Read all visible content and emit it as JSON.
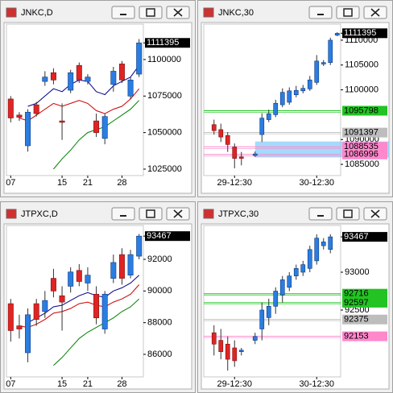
{
  "windows": [
    {
      "title": "JNKC,D",
      "last": 1111395,
      "ylim": [
        1020600,
        1124200
      ],
      "yticks": [
        1100000,
        1075000,
        1050000,
        1025000
      ],
      "categories": [
        "07",
        null,
        null,
        null,
        null,
        null,
        "15",
        null,
        null,
        "21",
        null,
        null,
        null,
        "28",
        null,
        null
      ],
      "candles": {
        "open": [
          1073000,
          1062000,
          1041000,
          1069000,
          1085000,
          1091000,
          1058000,
          1079000,
          1096000,
          1085000,
          1058000,
          1046000,
          1083000,
          1097000,
          1075000,
          1090000
        ],
        "high": [
          1075000,
          1064000,
          1066000,
          1071000,
          1092000,
          1094000,
          1070000,
          1093000,
          1098000,
          1090000,
          1063000,
          1063000,
          1095000,
          1099000,
          1088000,
          1114000
        ],
        "low": [
          1057000,
          1058000,
          1037000,
          1061000,
          1082000,
          1083000,
          1045000,
          1077000,
          1084000,
          1083000,
          1047000,
          1042000,
          1078000,
          1084000,
          1073000,
          1088000
        ],
        "close": [
          1060000,
          1060500,
          1064000,
          1063000,
          1088000,
          1086000,
          1057000,
          1091000,
          1086000,
          1088000,
          1050000,
          1061000,
          1092000,
          1086000,
          1086000,
          1111395
        ]
      },
      "averages": [
        {
          "color": "#00008b",
          "values": [
            null,
            null,
            1068000,
            1070000,
            1075000,
            1080000,
            1078000,
            1083000,
            1086000,
            1085000,
            1078000,
            1076000,
            1082000,
            1085000,
            1088000,
            1096000
          ]
        },
        {
          "color": "#cc0000",
          "values": [
            null,
            1060000,
            1058000,
            1062000,
            1066000,
            1070000,
            1068000,
            1070000,
            1072000,
            1070000,
            1065000,
            1063000,
            1066000,
            1068000,
            1073000,
            1080000
          ]
        },
        {
          "color": "#008000",
          "values": [
            null,
            null,
            null,
            null,
            null,
            1025000,
            1032000,
            1038000,
            1045000,
            1050000,
            1052000,
            1054000,
            1058000,
            1062000,
            1066000,
            1072000
          ]
        }
      ],
      "levels": []
    },
    {
      "title": "JNKC,30",
      "last": 1111395,
      "ylim": [
        1082742,
        1113226
      ],
      "yticks": [
        1110000,
        1105000,
        1100000,
        1090000,
        1085000
      ],
      "categories": [
        null,
        null,
        null,
        null,
        "29-12:30",
        null,
        null,
        null,
        null,
        null,
        null,
        null,
        null,
        null,
        null,
        null,
        "30-12:30",
        null,
        null,
        null
      ],
      "candles": {
        "open": [
          null,
          1093000,
          1092000,
          1090800,
          1088500,
          1086500,
          null,
          1086800,
          1091000,
          1094000,
          1095000,
          1097000,
          1097500,
          1099000,
          1099800,
          1100200,
          1101500,
          1105200,
          1105500,
          1111000
        ],
        "high": [
          null,
          1094000,
          1093200,
          1091500,
          1089200,
          1087500,
          null,
          1087600,
          1095300,
          1096000,
          1098000,
          1100300,
          1100500,
          1100800,
          1101000,
          1102800,
          1107000,
          1106000,
          1110500,
          1111600
        ],
        "low": [
          null,
          1091000,
          1089500,
          1087500,
          1084200,
          1084800,
          null,
          1086500,
          1089500,
          1093500,
          1094500,
          1096500,
          1097000,
          1098500,
          1099300,
          1099800,
          1101000,
          1104800,
          1105000,
          1110800
        ],
        "close": [
          null,
          1091800,
          1090500,
          1089000,
          1086200,
          1086200,
          null,
          1087100,
          1094300,
          1095200,
          1097300,
          1099500,
          1099800,
          1099900,
          1100300,
          1102000,
          1105800,
          1105500,
          1110000,
          1111395
        ]
      },
      "averages": [],
      "zone": [
        1086400,
        1089600
      ],
      "levels": [
        {
          "value": 1095798,
          "color": "#22c322"
        },
        {
          "value": 1091397,
          "color": "#bdbdbd"
        },
        {
          "value": 1088535,
          "color": "#ff88cc"
        },
        {
          "value": 1086996,
          "color": "#ff88cc"
        }
      ]
    },
    {
      "title": "JTPXC,D",
      "last": 93467,
      "ylim": [
        84575,
        94137
      ],
      "yticks": [
        92000,
        90000,
        88000,
        86000
      ],
      "categories": [
        "07",
        null,
        null,
        null,
        null,
        null,
        "15",
        null,
        null,
        "21",
        null,
        null,
        null,
        "28",
        null,
        null
      ],
      "candles": {
        "open": [
          89200,
          87800,
          86100,
          89200,
          88700,
          90800,
          89700,
          90300,
          91300,
          90500,
          89800,
          87600,
          90800,
          92300,
          91000,
          92200
        ],
        "high": [
          89500,
          88500,
          88900,
          89500,
          90000,
          91400,
          90300,
          91500,
          91700,
          91500,
          90300,
          90000,
          92300,
          92700,
          92600,
          93600
        ],
        "low": [
          86800,
          87000,
          85500,
          87800,
          88300,
          89600,
          87500,
          89900,
          90300,
          90000,
          87900,
          87300,
          90500,
          90400,
          90800,
          92000
        ],
        "close": [
          87500,
          87600,
          88500,
          88200,
          89400,
          90000,
          89300,
          91200,
          90600,
          91000,
          88300,
          89800,
          91800,
          90800,
          92300,
          93467
        ]
      },
      "averages": [
        {
          "color": "#00008b",
          "values": [
            null,
            null,
            88000,
            88300,
            88600,
            89000,
            89100,
            89400,
            89700,
            89900,
            89700,
            89600,
            90000,
            90200,
            90500,
            91000
          ]
        },
        {
          "color": "#cc0000",
          "values": [
            null,
            87800,
            87700,
            87900,
            88200,
            88600,
            88700,
            88900,
            89200,
            89300,
            89100,
            89000,
            89300,
            89500,
            89800,
            90400
          ]
        },
        {
          "color": "#008000",
          "values": [
            null,
            null,
            null,
            null,
            null,
            85300,
            85800,
            86400,
            87000,
            87400,
            87700,
            88000,
            88300,
            88700,
            89000,
            89500
          ]
        }
      ],
      "levels": []
    },
    {
      "title": "JTPXC,30",
      "last": 93467,
      "ylim": [
        91617,
        93617
      ],
      "yticks": [
        93000,
        92500
      ],
      "categories": [
        null,
        null,
        null,
        null,
        "29-12:30",
        null,
        null,
        null,
        null,
        null,
        null,
        null,
        null,
        null,
        null,
        null,
        "30-12:30",
        null,
        null,
        null
      ],
      "candles": {
        "open": [
          null,
          92200,
          92100,
          92050,
          92000,
          91950,
          null,
          92100,
          92250,
          92400,
          92550,
          92700,
          92800,
          92950,
          93000,
          93050,
          93150,
          93350,
          93300,
          null
        ],
        "high": [
          null,
          92300,
          92250,
          92150,
          92100,
          92000,
          null,
          92200,
          92600,
          92650,
          92800,
          92950,
          93000,
          93100,
          93150,
          93350,
          93500,
          93450,
          93500,
          null
        ],
        "low": [
          null,
          91900,
          91850,
          91700,
          91750,
          91900,
          null,
          92050,
          92100,
          92300,
          92450,
          92600,
          92750,
          92900,
          92950,
          93000,
          93100,
          93300,
          93250,
          null
        ],
        "close": [
          null,
          92050,
          91950,
          91850,
          91830,
          91970,
          null,
          92150,
          92500,
          92550,
          92750,
          92900,
          92950,
          93050,
          93100,
          93300,
          93450,
          93400,
          93467,
          null
        ]
      },
      "averages": [],
      "levels": [
        {
          "value": 92716,
          "color": "#22c322"
        },
        {
          "value": 92597,
          "color": "#22c322"
        },
        {
          "value": 92375,
          "color": "#bdbdbd"
        },
        {
          "value": 92153,
          "color": "#ff88cc"
        }
      ]
    }
  ]
}
